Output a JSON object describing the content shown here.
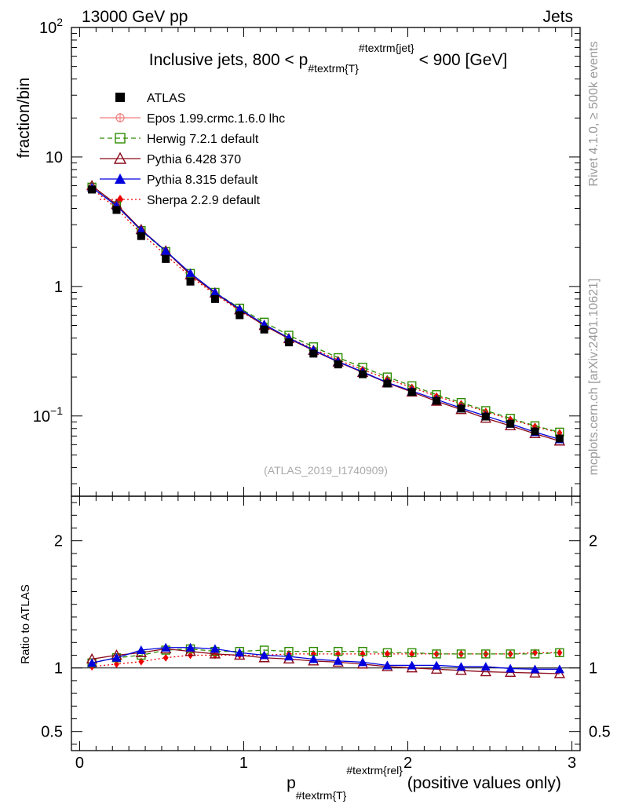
{
  "header": {
    "left": "13000 GeV pp",
    "right": "Jets"
  },
  "side_labels": {
    "rivet": "Rivet 4.1.0, ≥ 500k events",
    "mcplots": "mcplots.cern.ch [arXiv:2401.10621]"
  },
  "main_panel": {
    "title_prefix": "Inclusive jets, 800 < p",
    "title_sub": "#textrm{T}",
    "title_sup": "#textrm{jet}",
    "title_suffix": " < 900 [GeV]",
    "ylabel": "fraction/bin",
    "analysis_label": "(ATLAS_2019_I1740909)",
    "ytick_labels": [
      {
        "value": 0.1,
        "base": "10",
        "exp": "−1"
      },
      {
        "value": 1,
        "base": "1",
        "exp": ""
      },
      {
        "value": 10,
        "base": "10",
        "exp": ""
      },
      {
        "value": 100,
        "base": "10",
        "exp": "2"
      }
    ]
  },
  "ratio_panel": {
    "ylabel": "Ratio to ATLAS",
    "ytick_labels": [
      "0.5",
      "1",
      "2"
    ],
    "ytick_values": [
      0.5,
      1,
      2
    ]
  },
  "x_axis": {
    "label_prefix": "p",
    "label_sub": "#textrm{T}",
    "label_sup": "#textrm{rel}",
    "label_suffix": " (positive values only)",
    "tick_labels": [
      "0",
      "1",
      "2",
      "3"
    ],
    "tick_values": [
      0,
      1,
      2,
      3
    ]
  },
  "legend": [
    {
      "label": "ATLAS",
      "color": "#000000",
      "marker": "square-filled",
      "line": "none"
    },
    {
      "label": "Epos 1.99.crmc.1.6.0 lhc",
      "color": "#f08080",
      "marker": "cross-circle",
      "line": "solid"
    },
    {
      "label": "Herwig 7.2.1 default",
      "color": "#2e8b00",
      "marker": "square-open",
      "line": "dashed"
    },
    {
      "label": "Pythia 6.428 370",
      "color": "#8b0a1a",
      "marker": "triangle-open",
      "line": "solid"
    },
    {
      "label": "Pythia 8.315 default",
      "color": "#0000dd",
      "marker": "triangle-filled",
      "line": "solid"
    },
    {
      "label": "Sherpa 2.2.9 default",
      "color": "#ee0000",
      "marker": "diamond-filled",
      "line": "dotted"
    }
  ],
  "chart_data": {
    "type": "scatter",
    "title": "Inclusive jets, 800 < p_T^jet < 900 [GeV]",
    "xlabel": "p_T^rel (positive values only)",
    "ylabel": "fraction/bin",
    "xlim": [
      -0.05,
      3.05
    ],
    "ylim": [
      0.024,
      100
    ],
    "yscale": "log",
    "ratio_ylim": [
      0.35,
      2.35
    ],
    "ratio_ylabel": "Ratio to ATLAS",
    "x": [
      0.075,
      0.225,
      0.375,
      0.525,
      0.675,
      0.825,
      0.975,
      1.125,
      1.275,
      1.425,
      1.575,
      1.725,
      1.875,
      2.025,
      2.175,
      2.325,
      2.475,
      2.625,
      2.775,
      2.925
    ],
    "data": {
      "name": "ATLAS",
      "values": [
        5.6,
        3.9,
        2.45,
        1.63,
        1.09,
        0.8,
        0.6,
        0.465,
        0.37,
        0.303,
        0.25,
        0.21,
        0.178,
        0.153,
        0.131,
        0.114,
        0.099,
        0.087,
        0.076,
        0.067
      ]
    },
    "series": [
      {
        "name": "Herwig 7.2.1 default",
        "values": [
          5.85,
          4.2,
          2.7,
          1.86,
          1.26,
          0.9,
          0.68,
          0.53,
          0.42,
          0.342,
          0.282,
          0.238,
          0.2,
          0.171,
          0.146,
          0.127,
          0.11,
          0.096,
          0.084,
          0.075
        ],
        "ratio": [
          1.04,
          1.08,
          1.1,
          1.14,
          1.15,
          1.13,
          1.13,
          1.14,
          1.13,
          1.13,
          1.13,
          1.13,
          1.12,
          1.12,
          1.11,
          1.11,
          1.11,
          1.11,
          1.11,
          1.12
        ]
      },
      {
        "name": "Pythia 6.428 370",
        "values": [
          6.0,
          4.3,
          2.75,
          1.88,
          1.23,
          0.89,
          0.66,
          0.5,
          0.395,
          0.32,
          0.261,
          0.217,
          0.18,
          0.153,
          0.13,
          0.112,
          0.096,
          0.084,
          0.073,
          0.064
        ],
        "ratio": [
          1.07,
          1.1,
          1.12,
          1.15,
          1.13,
          1.11,
          1.1,
          1.08,
          1.07,
          1.055,
          1.045,
          1.03,
          1.01,
          1.0,
          0.99,
          0.98,
          0.97,
          0.965,
          0.96,
          0.955
        ]
      },
      {
        "name": "Pythia 8.315 default",
        "values": [
          5.8,
          4.2,
          2.72,
          1.88,
          1.27,
          0.9,
          0.67,
          0.51,
          0.4,
          0.323,
          0.263,
          0.219,
          0.181,
          0.156,
          0.134,
          0.115,
          0.1,
          0.087,
          0.075,
          0.066
        ],
        "ratio": [
          1.04,
          1.08,
          1.14,
          1.16,
          1.16,
          1.15,
          1.12,
          1.1,
          1.09,
          1.07,
          1.055,
          1.045,
          1.02,
          1.02,
          1.02,
          1.01,
          1.01,
          0.995,
          0.99,
          0.99
        ]
      },
      {
        "name": "Sherpa 2.2.9 default",
        "values": [
          5.7,
          4.0,
          2.57,
          1.75,
          1.19,
          0.87,
          0.65,
          0.505,
          0.401,
          0.329,
          0.271,
          0.228,
          0.193,
          0.166,
          0.142,
          0.124,
          0.108,
          0.094,
          0.083,
          0.074
        ],
        "ratio": [
          1.01,
          1.03,
          1.05,
          1.08,
          1.1,
          1.1,
          1.1,
          1.1,
          1.11,
          1.11,
          1.11,
          1.11,
          1.11,
          1.11,
          1.11,
          1.11,
          1.11,
          1.11,
          1.12,
          1.12
        ]
      },
      {
        "name": "Epos 1.99.crmc.1.6.0 lhc",
        "values": [],
        "ratio": []
      }
    ],
    "legend_position": "top-left"
  }
}
